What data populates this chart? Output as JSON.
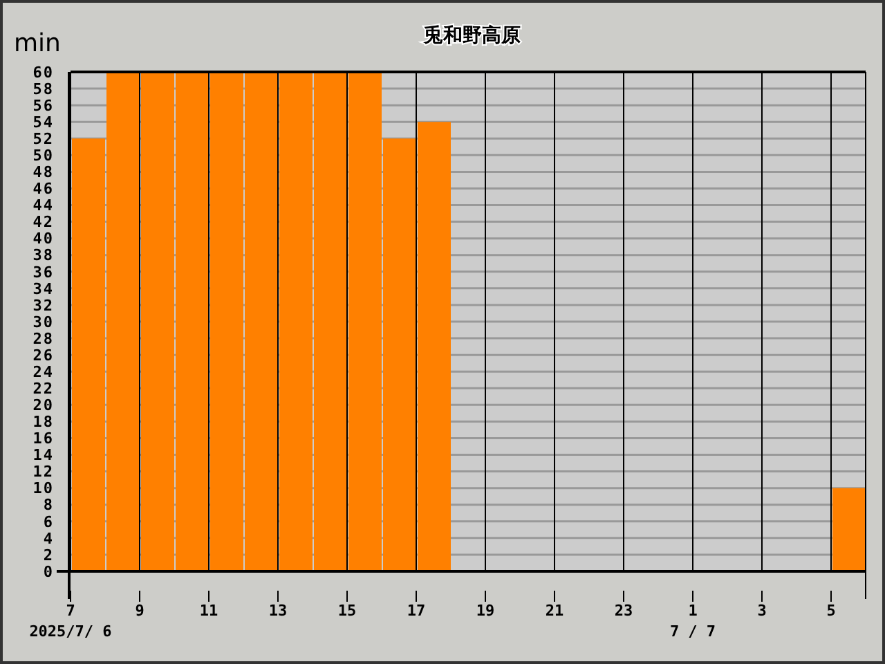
{
  "chart_data": {
    "type": "histogram",
    "title": "兎和野高原",
    "ylabel": "min",
    "bins": [
      "2025-07-06T07:00",
      "2025-07-06T08:00",
      "2025-07-06T09:00",
      "2025-07-06T10:00",
      "2025-07-06T11:00",
      "2025-07-06T12:00",
      "2025-07-06T13:00",
      "2025-07-06T14:00",
      "2025-07-06T15:00",
      "2025-07-06T16:00",
      "2025-07-06T17:00",
      "2025-07-06T18:00",
      "2025-07-06T19:00",
      "2025-07-06T20:00",
      "2025-07-06T21:00",
      "2025-07-06T22:00",
      "2025-07-06T23:00",
      "2025-07-07T00:00",
      "2025-07-07T01:00",
      "2025-07-07T02:00",
      "2025-07-07T03:00",
      "2025-07-07T04:00",
      "2025-07-07T05:00",
      "2025-07-07T06:00"
    ],
    "values": [
      52,
      60,
      60,
      60,
      60,
      60,
      60,
      60,
      60,
      52,
      54,
      0,
      0,
      0,
      0,
      0,
      0,
      0,
      0,
      0,
      0,
      0,
      10
    ],
    "color": "#ff8000",
    "xlim": [
      "2025-07-06T07:00",
      "2025-07-07T06:00"
    ],
    "xticks": [
      {
        "value": "2025-07-06T07:00",
        "label": "7\n2025/7/ 6"
      },
      {
        "value": "2025-07-06T09:00",
        "label": "9"
      },
      {
        "value": "2025-07-06T11:00",
        "label": "11"
      },
      {
        "value": "2025-07-06T13:00",
        "label": "13"
      },
      {
        "value": "2025-07-06T15:00",
        "label": "15"
      },
      {
        "value": "2025-07-06T17:00",
        "label": "17"
      },
      {
        "value": "2025-07-06T19:00",
        "label": "19"
      },
      {
        "value": "2025-07-06T21:00",
        "label": "21"
      },
      {
        "value": "2025-07-06T23:00",
        "label": "23"
      },
      {
        "value": "2025-07-07T01:00",
        "label": "1\n7 / 7"
      },
      {
        "value": "2025-07-07T03:00",
        "label": "3"
      },
      {
        "value": "2025-07-07T05:00",
        "label": "5"
      }
    ],
    "ylim": [
      0,
      60
    ],
    "yticks": [
      0,
      2,
      4,
      6,
      8,
      10,
      12,
      14,
      16,
      18,
      20,
      22,
      24,
      26,
      28,
      30,
      32,
      34,
      36,
      38,
      40,
      42,
      44,
      46,
      48,
      50,
      52,
      54,
      56,
      58,
      60
    ],
    "grid": true
  }
}
